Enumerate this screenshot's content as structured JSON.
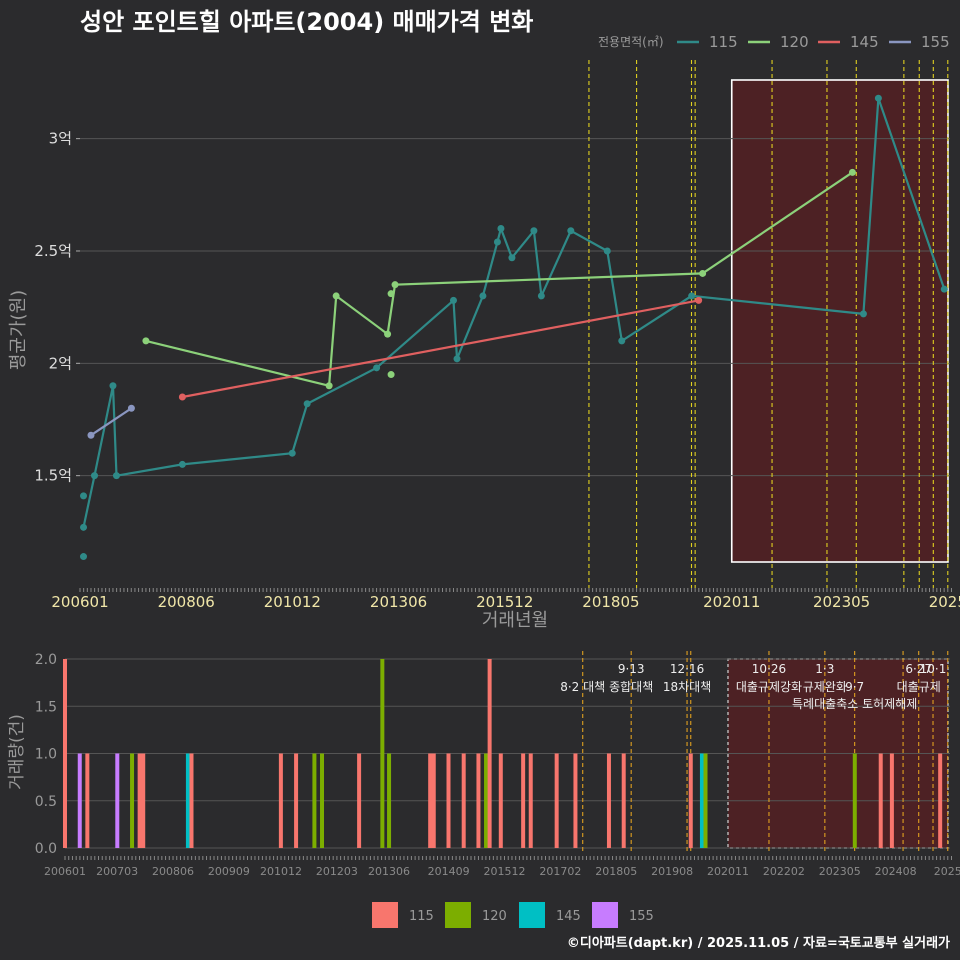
{
  "title": "성안 포인트힐 아파트(2004) 매매가격 변화",
  "footer": "©디아파트(dapt.kr) / 2025.11.05 / 자료=국토교통부 실거래가",
  "colors": {
    "bg": "#2b2b2d",
    "grid": "#555555",
    "text": "#dddddd",
    "axis_label": "#9a9a9a",
    "tick_label_top": "#f0e6a8",
    "tick_label_bottom": "#8a8a8a",
    "policy_line_top": "#e0d020",
    "policy_line_bottom": "#e0a020",
    "highlight_fill": "#5a1f22",
    "s115": "#2f8a88",
    "s120": "#8cd17a",
    "s145": "#e06060",
    "s155": "#8a96c0",
    "b115": "#f8766d",
    "b120": "#7cae00",
    "b145": "#00bfc4",
    "b155": "#c77cff"
  },
  "chart_data": [
    {
      "type": "line",
      "id": "price",
      "title": "성안 포인트힐 아파트(2004) 매매가격 변화",
      "xlabel": "거래년월",
      "ylabel": "평균가(원)",
      "legend_title": "전용면적(㎡)",
      "legend": [
        "115",
        "120",
        "145",
        "155"
      ],
      "xlim": [
        2006.0,
        2025.8
      ],
      "ylim": [
        1.0,
        3.35
      ],
      "x_ticks": [
        2006.0,
        2008.417,
        2010.833,
        2013.25,
        2015.667,
        2018.083,
        2020.833,
        2023.333,
        2025.75
      ],
      "x_tick_labels": [
        "200601",
        "200806",
        "201012",
        "201306",
        "201512",
        "201805",
        "202011",
        "202305",
        "2025"
      ],
      "y_ticks": [
        1.5,
        2.0,
        2.5,
        3.0
      ],
      "y_tick_labels": [
        "1.5억",
        "2억",
        "2.5억",
        "3억"
      ],
      "highlight_x": [
        2020.833,
        2025.8
      ],
      "policy_lines": [
        2017.583,
        2018.667,
        2019.917,
        2020.0,
        2021.75,
        2023.0,
        2023.667,
        2024.75,
        2025.1,
        2025.42,
        2025.75
      ],
      "series": [
        {
          "name": "115",
          "points": [
            [
              2006.08,
              1.27
            ],
            [
              2006.33,
              1.5
            ],
            [
              2006.75,
              1.9
            ],
            [
              2006.83,
              1.5
            ],
            [
              2008.33,
              1.55
            ],
            [
              2010.83,
              1.6
            ],
            [
              2011.17,
              1.82
            ],
            [
              2012.75,
              1.98
            ],
            [
              2014.5,
              2.28
            ],
            [
              2014.58,
              2.02
            ],
            [
              2015.17,
              2.3
            ],
            [
              2015.5,
              2.54
            ],
            [
              2015.58,
              2.6
            ],
            [
              2015.83,
              2.47
            ],
            [
              2016.33,
              2.59
            ],
            [
              2016.5,
              2.3
            ],
            [
              2017.17,
              2.59
            ],
            [
              2018.0,
              2.5
            ],
            [
              2018.33,
              2.1
            ],
            [
              2019.92,
              2.3
            ],
            [
              2023.83,
              2.22
            ],
            [
              2024.17,
              3.18
            ],
            [
              2025.67,
              2.33
            ]
          ],
          "extra": [
            [
              2006.08,
              1.41
            ],
            [
              2006.08,
              1.14
            ]
          ]
        },
        {
          "name": "120",
          "points": [
            [
              2007.5,
              2.1
            ],
            [
              2011.67,
              1.9
            ],
            [
              2011.83,
              2.3
            ],
            [
              2013.0,
              2.13
            ],
            [
              2013.17,
              2.35
            ],
            [
              2020.17,
              2.4
            ],
            [
              2023.58,
              2.85
            ]
          ],
          "extra": [
            [
              2013.08,
              2.31
            ],
            [
              2013.08,
              1.95
            ]
          ]
        },
        {
          "name": "145",
          "points": [
            [
              2008.33,
              1.85
            ],
            [
              2020.08,
              2.28
            ]
          ],
          "extra": []
        },
        {
          "name": "155",
          "points": [
            [
              2006.25,
              1.68
            ],
            [
              2007.17,
              1.8
            ]
          ],
          "extra": []
        }
      ]
    },
    {
      "type": "bar",
      "id": "volume",
      "ylabel": "거래량(건)",
      "legend": [
        "115",
        "120",
        "145",
        "155"
      ],
      "xlim": [
        2006.0,
        2025.8
      ],
      "ylim": [
        0,
        2.0
      ],
      "y_ticks": [
        0.0,
        0.5,
        1.0,
        1.5,
        2.0
      ],
      "y_tick_labels": [
        "0.0",
        "0.5",
        "1.0",
        "1.5",
        "2.0"
      ],
      "x_ticks": [
        2006.0,
        2007.167,
        2008.417,
        2009.667,
        2010.833,
        2012.083,
        2013.25,
        2014.583,
        2015.833,
        2017.083,
        2018.333,
        2019.583,
        2020.833,
        2022.083,
        2023.333,
        2024.583,
        2025.75
      ],
      "x_tick_labels": [
        "200601",
        "200703",
        "200806",
        "200909",
        "201012",
        "201203",
        "201306",
        "201409",
        "201512",
        "201702",
        "201805",
        "201908",
        "202011",
        "202202",
        "202305",
        "202408",
        "2025"
      ],
      "highlight_x": [
        2020.833,
        2025.8
      ],
      "policy_lines": [
        2017.583,
        2018.667,
        2019.917,
        2020.0,
        2021.75,
        2023.0,
        2023.667,
        2024.75,
        2025.1,
        2025.42,
        2025.75
      ],
      "bars": [
        {
          "x": 2006.0,
          "v": 2,
          "s": "115"
        },
        {
          "x": 2006.33,
          "v": 1,
          "s": "155"
        },
        {
          "x": 2006.5,
          "v": 1,
          "s": "115"
        },
        {
          "x": 2007.17,
          "v": 1,
          "s": "155"
        },
        {
          "x": 2007.5,
          "v": 1,
          "s": "120"
        },
        {
          "x": 2007.67,
          "v": 1,
          "s": "115"
        },
        {
          "x": 2007.75,
          "v": 1,
          "s": "115"
        },
        {
          "x": 2008.75,
          "v": 1,
          "s": "145"
        },
        {
          "x": 2008.83,
          "v": 1,
          "s": "115"
        },
        {
          "x": 2010.83,
          "v": 1,
          "s": "115"
        },
        {
          "x": 2011.17,
          "v": 1,
          "s": "115"
        },
        {
          "x": 2011.58,
          "v": 1,
          "s": "120"
        },
        {
          "x": 2011.75,
          "v": 1,
          "s": "120"
        },
        {
          "x": 2012.58,
          "v": 1,
          "s": "115"
        },
        {
          "x": 2013.1,
          "v": 2,
          "s": "120"
        },
        {
          "x": 2013.25,
          "v": 1,
          "s": "120"
        },
        {
          "x": 2014.17,
          "v": 1,
          "s": "115"
        },
        {
          "x": 2014.25,
          "v": 1,
          "s": "115"
        },
        {
          "x": 2014.58,
          "v": 1,
          "s": "115"
        },
        {
          "x": 2014.92,
          "v": 1,
          "s": "115"
        },
        {
          "x": 2015.25,
          "v": 1,
          "s": "115"
        },
        {
          "x": 2015.42,
          "v": 1,
          "s": "120"
        },
        {
          "x": 2015.5,
          "v": 2,
          "s": "115"
        },
        {
          "x": 2015.75,
          "v": 1,
          "s": "115"
        },
        {
          "x": 2016.25,
          "v": 1,
          "s": "115"
        },
        {
          "x": 2016.42,
          "v": 1,
          "s": "115"
        },
        {
          "x": 2017.0,
          "v": 1,
          "s": "115"
        },
        {
          "x": 2017.42,
          "v": 1,
          "s": "115"
        },
        {
          "x": 2018.17,
          "v": 1,
          "s": "115"
        },
        {
          "x": 2018.5,
          "v": 1,
          "s": "115"
        },
        {
          "x": 2020.0,
          "v": 1,
          "s": "115"
        },
        {
          "x": 2020.25,
          "v": 1,
          "s": "145"
        },
        {
          "x": 2020.33,
          "v": 1,
          "s": "120"
        },
        {
          "x": 2023.67,
          "v": 1,
          "s": "120"
        },
        {
          "x": 2024.25,
          "v": 1,
          "s": "115"
        },
        {
          "x": 2024.5,
          "v": 1,
          "s": "115"
        },
        {
          "x": 2025.58,
          "v": 1,
          "s": "115"
        }
      ],
      "annotations": [
        {
          "x": 2017.583,
          "row": 1,
          "text": "8·2 대책"
        },
        {
          "x": 2018.667,
          "row": 0,
          "text": "9·13"
        },
        {
          "x": 2018.667,
          "row": 1,
          "text": "종합대책"
        },
        {
          "x": 2019.917,
          "row": 0,
          "text": "12·16"
        },
        {
          "x": 2019.917,
          "row": 1,
          "text": "18차대책"
        },
        {
          "x": 2021.75,
          "row": 0,
          "text": "10·26"
        },
        {
          "x": 2021.75,
          "row": 1,
          "text": "대출규제강화"
        },
        {
          "x": 2023.0,
          "row": 0,
          "text": "1·3"
        },
        {
          "x": 2023.0,
          "row": 1,
          "text": "규제완화"
        },
        {
          "x": 2023.667,
          "row": 1,
          "text": "9·7"
        },
        {
          "x": 2023.667,
          "row": 2,
          "text": "특례대출축소 토허제해제"
        },
        {
          "x": 2025.1,
          "row": 0,
          "text": "6·27"
        },
        {
          "x": 2025.1,
          "row": 1,
          "text": "대출규제"
        },
        {
          "x": 2025.42,
          "row": 0,
          "text": "10·1"
        }
      ]
    }
  ]
}
